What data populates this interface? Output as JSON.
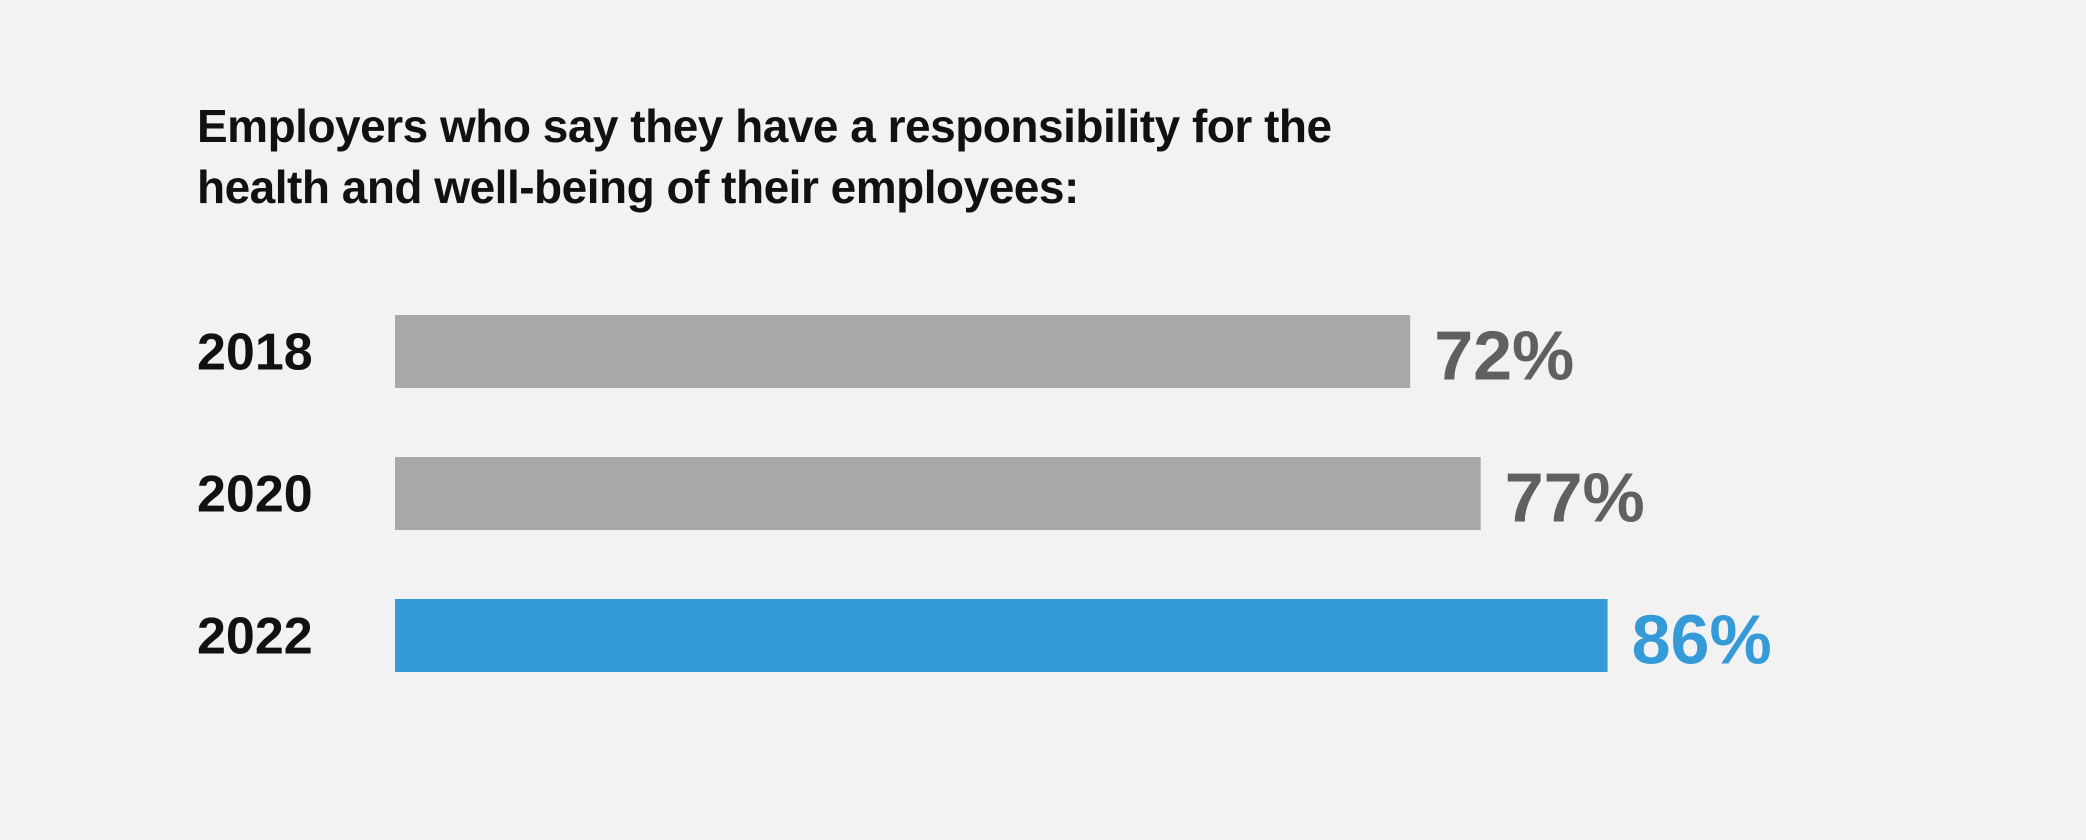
{
  "chart_data": {
    "type": "bar",
    "orientation": "horizontal",
    "title_lines": [
      "Employers who say they have a responsibility for the",
      "health and well-being of their employees:"
    ],
    "categories": [
      "2018",
      "2020",
      "2022"
    ],
    "values": [
      72,
      77,
      86
    ],
    "value_labels": [
      "72%",
      "77%",
      "86%"
    ],
    "unit": "%",
    "xlim": [
      0,
      100
    ],
    "grid": false,
    "legend": "none",
    "colors": {
      "default_bar": "#a7a8a9",
      "default_label": "#5f6062",
      "highlight_bar": "#359bd8",
      "highlight_label": "#359bd8",
      "category_text": "#111111",
      "title_text": "#111111",
      "background": "#f2f2f2"
    },
    "highlight_category": "2022"
  }
}
